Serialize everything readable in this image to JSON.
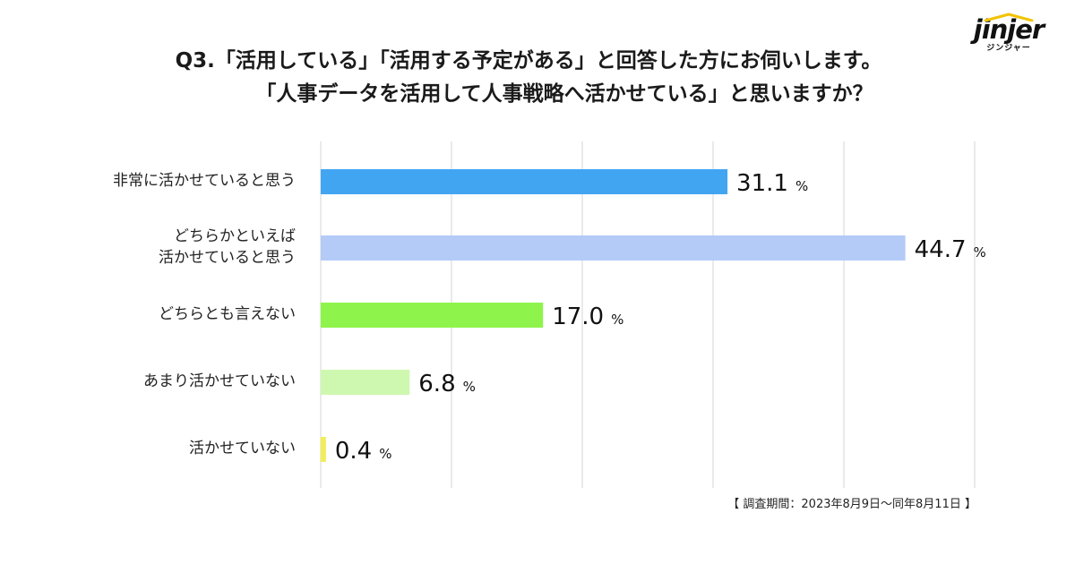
{
  "logo": {
    "word": "jinjer",
    "sub": "ジンジャー"
  },
  "chart_data": {
    "type": "bar",
    "orientation": "horizontal",
    "title": [
      "Q3.「活用している」「活用する予定がある」と回答した方にお伺いします。",
      "「人事データを活用して人事戦略へ活かせている」と思いますか？"
    ],
    "categories": [
      "非常に活かせていると思う",
      "どちらかといえば\n活かせていると思う",
      "どちらとも言えない",
      "あまり活かせていない",
      "活かせていない"
    ],
    "values": [
      31.1,
      44.7,
      17.0,
      6.8,
      0.4
    ],
    "value_labels": [
      "31.1",
      "44.7",
      "17.0",
      "6.8",
      "0.4"
    ],
    "unit": "%",
    "colors": [
      "#42a5f2",
      "#b4cbf7",
      "#8ef44c",
      "#cef8b0",
      "#f1ee57"
    ],
    "xlim": [
      0,
      50
    ],
    "grid": true,
    "gridline_step": 10,
    "xlabel": "",
    "ylabel": ""
  },
  "footnote": "【 調査期間：2023年8月9日〜同年8月11日 】"
}
